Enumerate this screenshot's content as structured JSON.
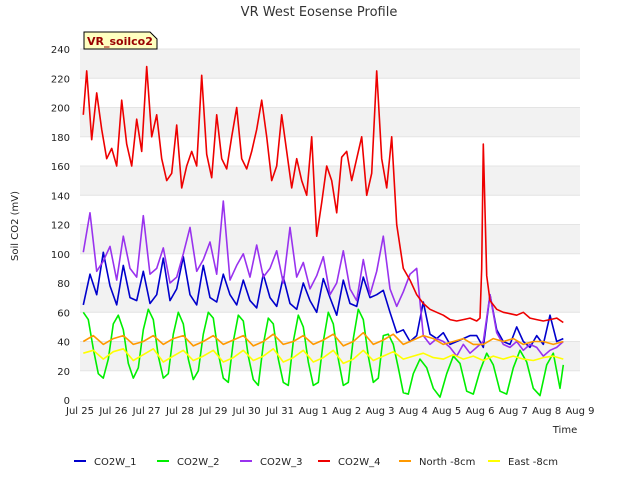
{
  "chart_data": {
    "type": "line",
    "title": "VR West Eosense Profile",
    "xlabel": "Time",
    "ylabel": "Soil CO2 (mV)",
    "site_label": "VR_soilco2",
    "ylim": [
      0,
      240
    ],
    "yticks": [
      0,
      20,
      40,
      60,
      80,
      100,
      120,
      140,
      160,
      180,
      200,
      220,
      240
    ],
    "xlim": [
      0,
      15
    ],
    "xtick_labels": [
      "Jul 25",
      "Jul 26",
      "Jul 27",
      "Jul 28",
      "Jul 29",
      "Jul 30",
      "Jul 31",
      "Aug 1",
      "Aug 2",
      "Aug 3",
      "Aug 4",
      "Aug 5",
      "Aug 6",
      "Aug 7",
      "Aug 8",
      "Aug 9"
    ],
    "grid": "horizontal bands",
    "legend_placement": "bottom",
    "series": [
      {
        "name": "CO2W_1",
        "color": "#0000cc",
        "x": [
          0.1,
          0.3,
          0.5,
          0.7,
          0.9,
          1.1,
          1.3,
          1.5,
          1.7,
          1.9,
          2.1,
          2.3,
          2.5,
          2.7,
          2.9,
          3.1,
          3.3,
          3.5,
          3.7,
          3.9,
          4.1,
          4.3,
          4.5,
          4.7,
          4.9,
          5.1,
          5.3,
          5.5,
          5.7,
          5.9,
          6.1,
          6.3,
          6.5,
          6.7,
          6.9,
          7.1,
          7.3,
          7.5,
          7.7,
          7.9,
          8.1,
          8.3,
          8.5,
          8.7,
          8.9,
          9.1,
          9.3,
          9.5,
          9.7,
          9.9,
          10.1,
          10.3,
          10.5,
          10.7,
          10.9,
          11.1,
          11.3,
          11.5,
          11.7,
          11.9,
          12.1,
          12.3,
          12.5,
          12.7,
          12.9,
          13.1,
          13.3,
          13.5,
          13.7,
          13.9,
          14.1,
          14.3,
          14.5
        ],
        "y": [
          65,
          86,
          72,
          101,
          78,
          65,
          92,
          70,
          68,
          88,
          66,
          72,
          97,
          68,
          76,
          98,
          72,
          65,
          92,
          70,
          67,
          86,
          72,
          65,
          82,
          68,
          63,
          86,
          70,
          64,
          84,
          66,
          62,
          80,
          68,
          60,
          83,
          70,
          58,
          82,
          66,
          64,
          84,
          70,
          72,
          75,
          60,
          46,
          48,
          40,
          44,
          67,
          45,
          42,
          46,
          38,
          40,
          42,
          44,
          44,
          36,
          72,
          48,
          40,
          38,
          50,
          40,
          36,
          44,
          38,
          58,
          40,
          42
        ]
      },
      {
        "name": "CO2W_2",
        "color": "#00ee00",
        "x": [
          0.1,
          0.25,
          0.4,
          0.55,
          0.7,
          0.85,
          1.0,
          1.15,
          1.3,
          1.45,
          1.6,
          1.75,
          1.9,
          2.05,
          2.2,
          2.35,
          2.5,
          2.65,
          2.8,
          2.95,
          3.1,
          3.25,
          3.4,
          3.55,
          3.7,
          3.85,
          4.0,
          4.15,
          4.3,
          4.45,
          4.6,
          4.75,
          4.9,
          5.05,
          5.2,
          5.35,
          5.5,
          5.65,
          5.8,
          5.95,
          6.1,
          6.25,
          6.4,
          6.55,
          6.7,
          6.85,
          7.0,
          7.15,
          7.3,
          7.45,
          7.6,
          7.75,
          7.9,
          8.05,
          8.2,
          8.35,
          8.5,
          8.65,
          8.8,
          8.95,
          9.1,
          9.25,
          9.4,
          9.55,
          9.7,
          9.85,
          10.0,
          10.2,
          10.4,
          10.6,
          10.8,
          11.0,
          11.2,
          11.4,
          11.6,
          11.8,
          12.0,
          12.2,
          12.4,
          12.6,
          12.8,
          13.0,
          13.2,
          13.4,
          13.6,
          13.8,
          14.0,
          14.2,
          14.4,
          14.5
        ],
        "y": [
          60,
          55,
          35,
          18,
          15,
          28,
          52,
          58,
          48,
          25,
          15,
          22,
          48,
          62,
          55,
          30,
          15,
          18,
          45,
          60,
          52,
          28,
          14,
          20,
          45,
          60,
          56,
          32,
          15,
          12,
          40,
          58,
          54,
          30,
          14,
          10,
          38,
          56,
          52,
          28,
          12,
          10,
          40,
          58,
          50,
          26,
          10,
          12,
          40,
          60,
          52,
          28,
          10,
          12,
          42,
          62,
          55,
          30,
          12,
          15,
          44,
          45,
          38,
          22,
          5,
          4,
          18,
          28,
          22,
          8,
          2,
          18,
          30,
          25,
          6,
          4,
          20,
          32,
          24,
          6,
          4,
          22,
          34,
          26,
          8,
          3,
          24,
          32,
          8,
          24
        ]
      },
      {
        "name": "CO2W_3",
        "color": "#9933ee",
        "x": [
          0.1,
          0.3,
          0.5,
          0.7,
          0.9,
          1.1,
          1.3,
          1.5,
          1.7,
          1.9,
          2.1,
          2.3,
          2.5,
          2.7,
          2.9,
          3.1,
          3.3,
          3.5,
          3.7,
          3.9,
          4.1,
          4.3,
          4.5,
          4.7,
          4.9,
          5.1,
          5.3,
          5.5,
          5.7,
          5.9,
          6.1,
          6.3,
          6.5,
          6.7,
          6.9,
          7.1,
          7.3,
          7.5,
          7.7,
          7.9,
          8.1,
          8.3,
          8.5,
          8.7,
          8.9,
          9.1,
          9.3,
          9.5,
          9.7,
          9.9,
          10.1,
          10.3,
          10.5,
          10.7,
          10.9,
          11.1,
          11.3,
          11.5,
          11.7,
          11.9,
          12.1,
          12.3,
          12.5,
          12.7,
          12.9,
          13.1,
          13.3,
          13.5,
          13.7,
          13.9,
          14.1,
          14.3,
          14.5
        ],
        "y": [
          101,
          128,
          88,
          95,
          105,
          82,
          112,
          90,
          84,
          126,
          86,
          90,
          104,
          80,
          84,
          100,
          118,
          88,
          96,
          108,
          86,
          136,
          82,
          92,
          100,
          84,
          106,
          84,
          90,
          102,
          80,
          118,
          84,
          94,
          76,
          85,
          98,
          72,
          80,
          102,
          76,
          68,
          96,
          72,
          88,
          112,
          76,
          64,
          74,
          86,
          90,
          44,
          38,
          42,
          40,
          36,
          30,
          38,
          32,
          36,
          40,
          72,
          46,
          38,
          36,
          40,
          34,
          38,
          36,
          30,
          34,
          36,
          40
        ]
      },
      {
        "name": "CO2W_4",
        "color": "#ee0000",
        "x": [
          0.1,
          0.2,
          0.35,
          0.5,
          0.65,
          0.8,
          0.95,
          1.1,
          1.25,
          1.4,
          1.55,
          1.7,
          1.85,
          2.0,
          2.15,
          2.3,
          2.45,
          2.6,
          2.75,
          2.9,
          3.05,
          3.2,
          3.35,
          3.5,
          3.65,
          3.8,
          3.95,
          4.1,
          4.25,
          4.4,
          4.55,
          4.7,
          4.85,
          5.0,
          5.15,
          5.3,
          5.45,
          5.6,
          5.75,
          5.9,
          6.05,
          6.2,
          6.35,
          6.5,
          6.65,
          6.8,
          6.95,
          7.1,
          7.25,
          7.4,
          7.55,
          7.7,
          7.85,
          8.0,
          8.15,
          8.3,
          8.45,
          8.6,
          8.75,
          8.9,
          9.05,
          9.2,
          9.35,
          9.5,
          9.7,
          9.9,
          10.1,
          10.3,
          10.5,
          10.7,
          10.9,
          11.1,
          11.3,
          11.5,
          11.7,
          11.9,
          12.0,
          12.05,
          12.1,
          12.2,
          12.3,
          12.5,
          12.7,
          12.9,
          13.1,
          13.3,
          13.5,
          13.7,
          13.9,
          14.1,
          14.3,
          14.5
        ],
        "y": [
          195,
          225,
          178,
          210,
          185,
          165,
          172,
          160,
          205,
          175,
          160,
          192,
          170,
          228,
          180,
          195,
          165,
          150,
          155,
          188,
          145,
          160,
          170,
          160,
          222,
          168,
          152,
          195,
          165,
          158,
          180,
          200,
          165,
          158,
          170,
          185,
          205,
          180,
          150,
          160,
          195,
          170,
          145,
          165,
          150,
          140,
          180,
          112,
          135,
          160,
          150,
          128,
          166,
          170,
          150,
          165,
          180,
          140,
          155,
          225,
          165,
          145,
          180,
          120,
          90,
          82,
          72,
          66,
          62,
          60,
          58,
          55,
          54,
          55,
          56,
          54,
          56,
          90,
          175,
          85,
          68,
          62,
          60,
          59,
          58,
          60,
          56,
          55,
          54,
          55,
          56,
          53
        ]
      },
      {
        "name": "North -8cm",
        "color": "#ff9900",
        "x": [
          0.1,
          0.4,
          0.7,
          1.0,
          1.3,
          1.6,
          1.9,
          2.2,
          2.5,
          2.8,
          3.1,
          3.4,
          3.7,
          4.0,
          4.3,
          4.6,
          4.9,
          5.2,
          5.5,
          5.8,
          6.1,
          6.4,
          6.7,
          7.0,
          7.3,
          7.6,
          7.9,
          8.2,
          8.5,
          8.8,
          9.1,
          9.4,
          9.7,
          10.0,
          10.3,
          10.6,
          10.9,
          11.2,
          11.5,
          11.8,
          12.1,
          12.4,
          12.7,
          13.0,
          13.3,
          13.6,
          13.9,
          14.2,
          14.5
        ],
        "y": [
          40,
          44,
          38,
          42,
          44,
          38,
          40,
          44,
          38,
          42,
          44,
          37,
          40,
          44,
          38,
          41,
          44,
          37,
          40,
          45,
          38,
          40,
          44,
          38,
          41,
          45,
          37,
          40,
          46,
          38,
          41,
          45,
          38,
          41,
          44,
          42,
          38,
          40,
          42,
          38,
          38,
          42,
          40,
          42,
          38,
          40,
          40,
          38,
          40
        ]
      },
      {
        "name": "East -8cm",
        "color": "#ffff00",
        "x": [
          0.1,
          0.4,
          0.7,
          1.0,
          1.3,
          1.6,
          1.9,
          2.2,
          2.5,
          2.8,
          3.1,
          3.4,
          3.7,
          4.0,
          4.3,
          4.6,
          4.9,
          5.2,
          5.5,
          5.8,
          6.1,
          6.4,
          6.7,
          7.0,
          7.3,
          7.6,
          7.9,
          8.2,
          8.5,
          8.8,
          9.1,
          9.4,
          9.7,
          10.0,
          10.3,
          10.6,
          10.9,
          11.2,
          11.5,
          11.8,
          12.1,
          12.4,
          12.7,
          13.0,
          13.3,
          13.6,
          13.9,
          14.2,
          14.5
        ],
        "y": [
          32,
          34,
          28,
          33,
          35,
          27,
          31,
          35,
          26,
          30,
          34,
          27,
          30,
          34,
          26,
          29,
          34,
          27,
          30,
          35,
          26,
          29,
          34,
          26,
          29,
          34,
          25,
          28,
          34,
          27,
          30,
          33,
          28,
          30,
          32,
          29,
          28,
          31,
          28,
          30,
          27,
          30,
          28,
          30,
          28,
          27,
          29,
          30,
          28
        ]
      }
    ]
  }
}
